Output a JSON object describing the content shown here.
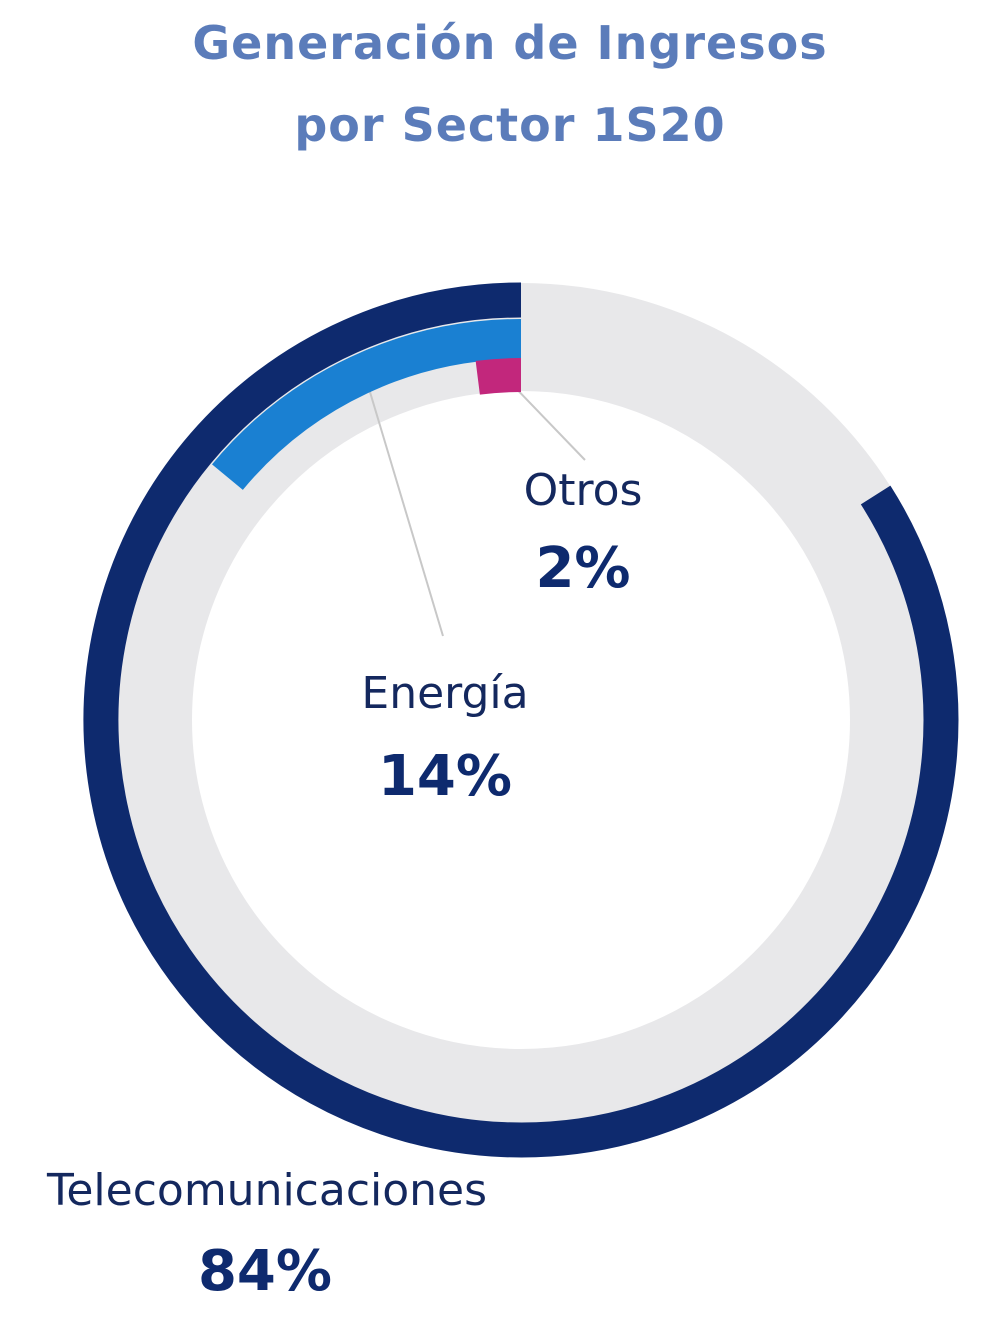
{
  "chart_data": {
    "type": "ring-arcs",
    "title": "Generación de Ingresos por Sector 1S20",
    "categories": [
      "Telecomunicaciones",
      "Energía",
      "Otros"
    ],
    "values": [
      84,
      14,
      2
    ],
    "value_labels": [
      "84%",
      "14%",
      "2%"
    ],
    "colors": [
      "#0e2a6e",
      "#1a80d2",
      "#c2277c"
    ]
  }
}
